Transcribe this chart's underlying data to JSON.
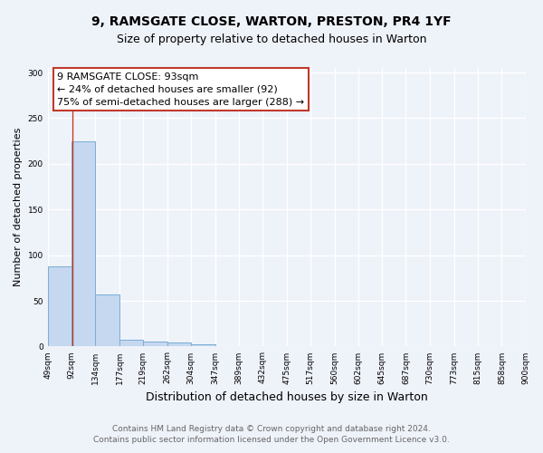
{
  "title": "9, RAMSGATE CLOSE, WARTON, PRESTON, PR4 1YF",
  "subtitle": "Size of property relative to detached houses in Warton",
  "xlabel": "Distribution of detached houses by size in Warton",
  "ylabel": "Number of detached properties",
  "bin_edges": [
    49,
    92,
    134,
    177,
    219,
    262,
    304,
    347,
    389,
    432,
    475,
    517,
    560,
    602,
    645,
    687,
    730,
    773,
    815,
    858,
    900
  ],
  "bar_heights": [
    88,
    225,
    57,
    7,
    5,
    4,
    2,
    0,
    0,
    0,
    0,
    0,
    0,
    0,
    0,
    0,
    0,
    0,
    0,
    0
  ],
  "bar_color": "#c5d8f0",
  "bar_edge_color": "#7aadd4",
  "property_size": 93,
  "property_line_color": "#c0392b",
  "ylim": [
    0,
    305
  ],
  "yticks": [
    0,
    50,
    100,
    150,
    200,
    250,
    300
  ],
  "annotation_text": "9 RAMSGATE CLOSE: 93sqm\n← 24% of detached houses are smaller (92)\n75% of semi-detached houses are larger (288) →",
  "annotation_box_color": "#ffffff",
  "annotation_box_edge_color": "#c0392b",
  "footer_line1": "Contains HM Land Registry data © Crown copyright and database right 2024.",
  "footer_line2": "Contains public sector information licensed under the Open Government Licence v3.0.",
  "background_color": "#eef2f9",
  "grid_color": "#ffffff",
  "title_fontsize": 10,
  "subtitle_fontsize": 9,
  "tick_label_fontsize": 6.5,
  "ylabel_fontsize": 8,
  "xlabel_fontsize": 9,
  "footer_fontsize": 6.5,
  "annotation_fontsize": 8
}
